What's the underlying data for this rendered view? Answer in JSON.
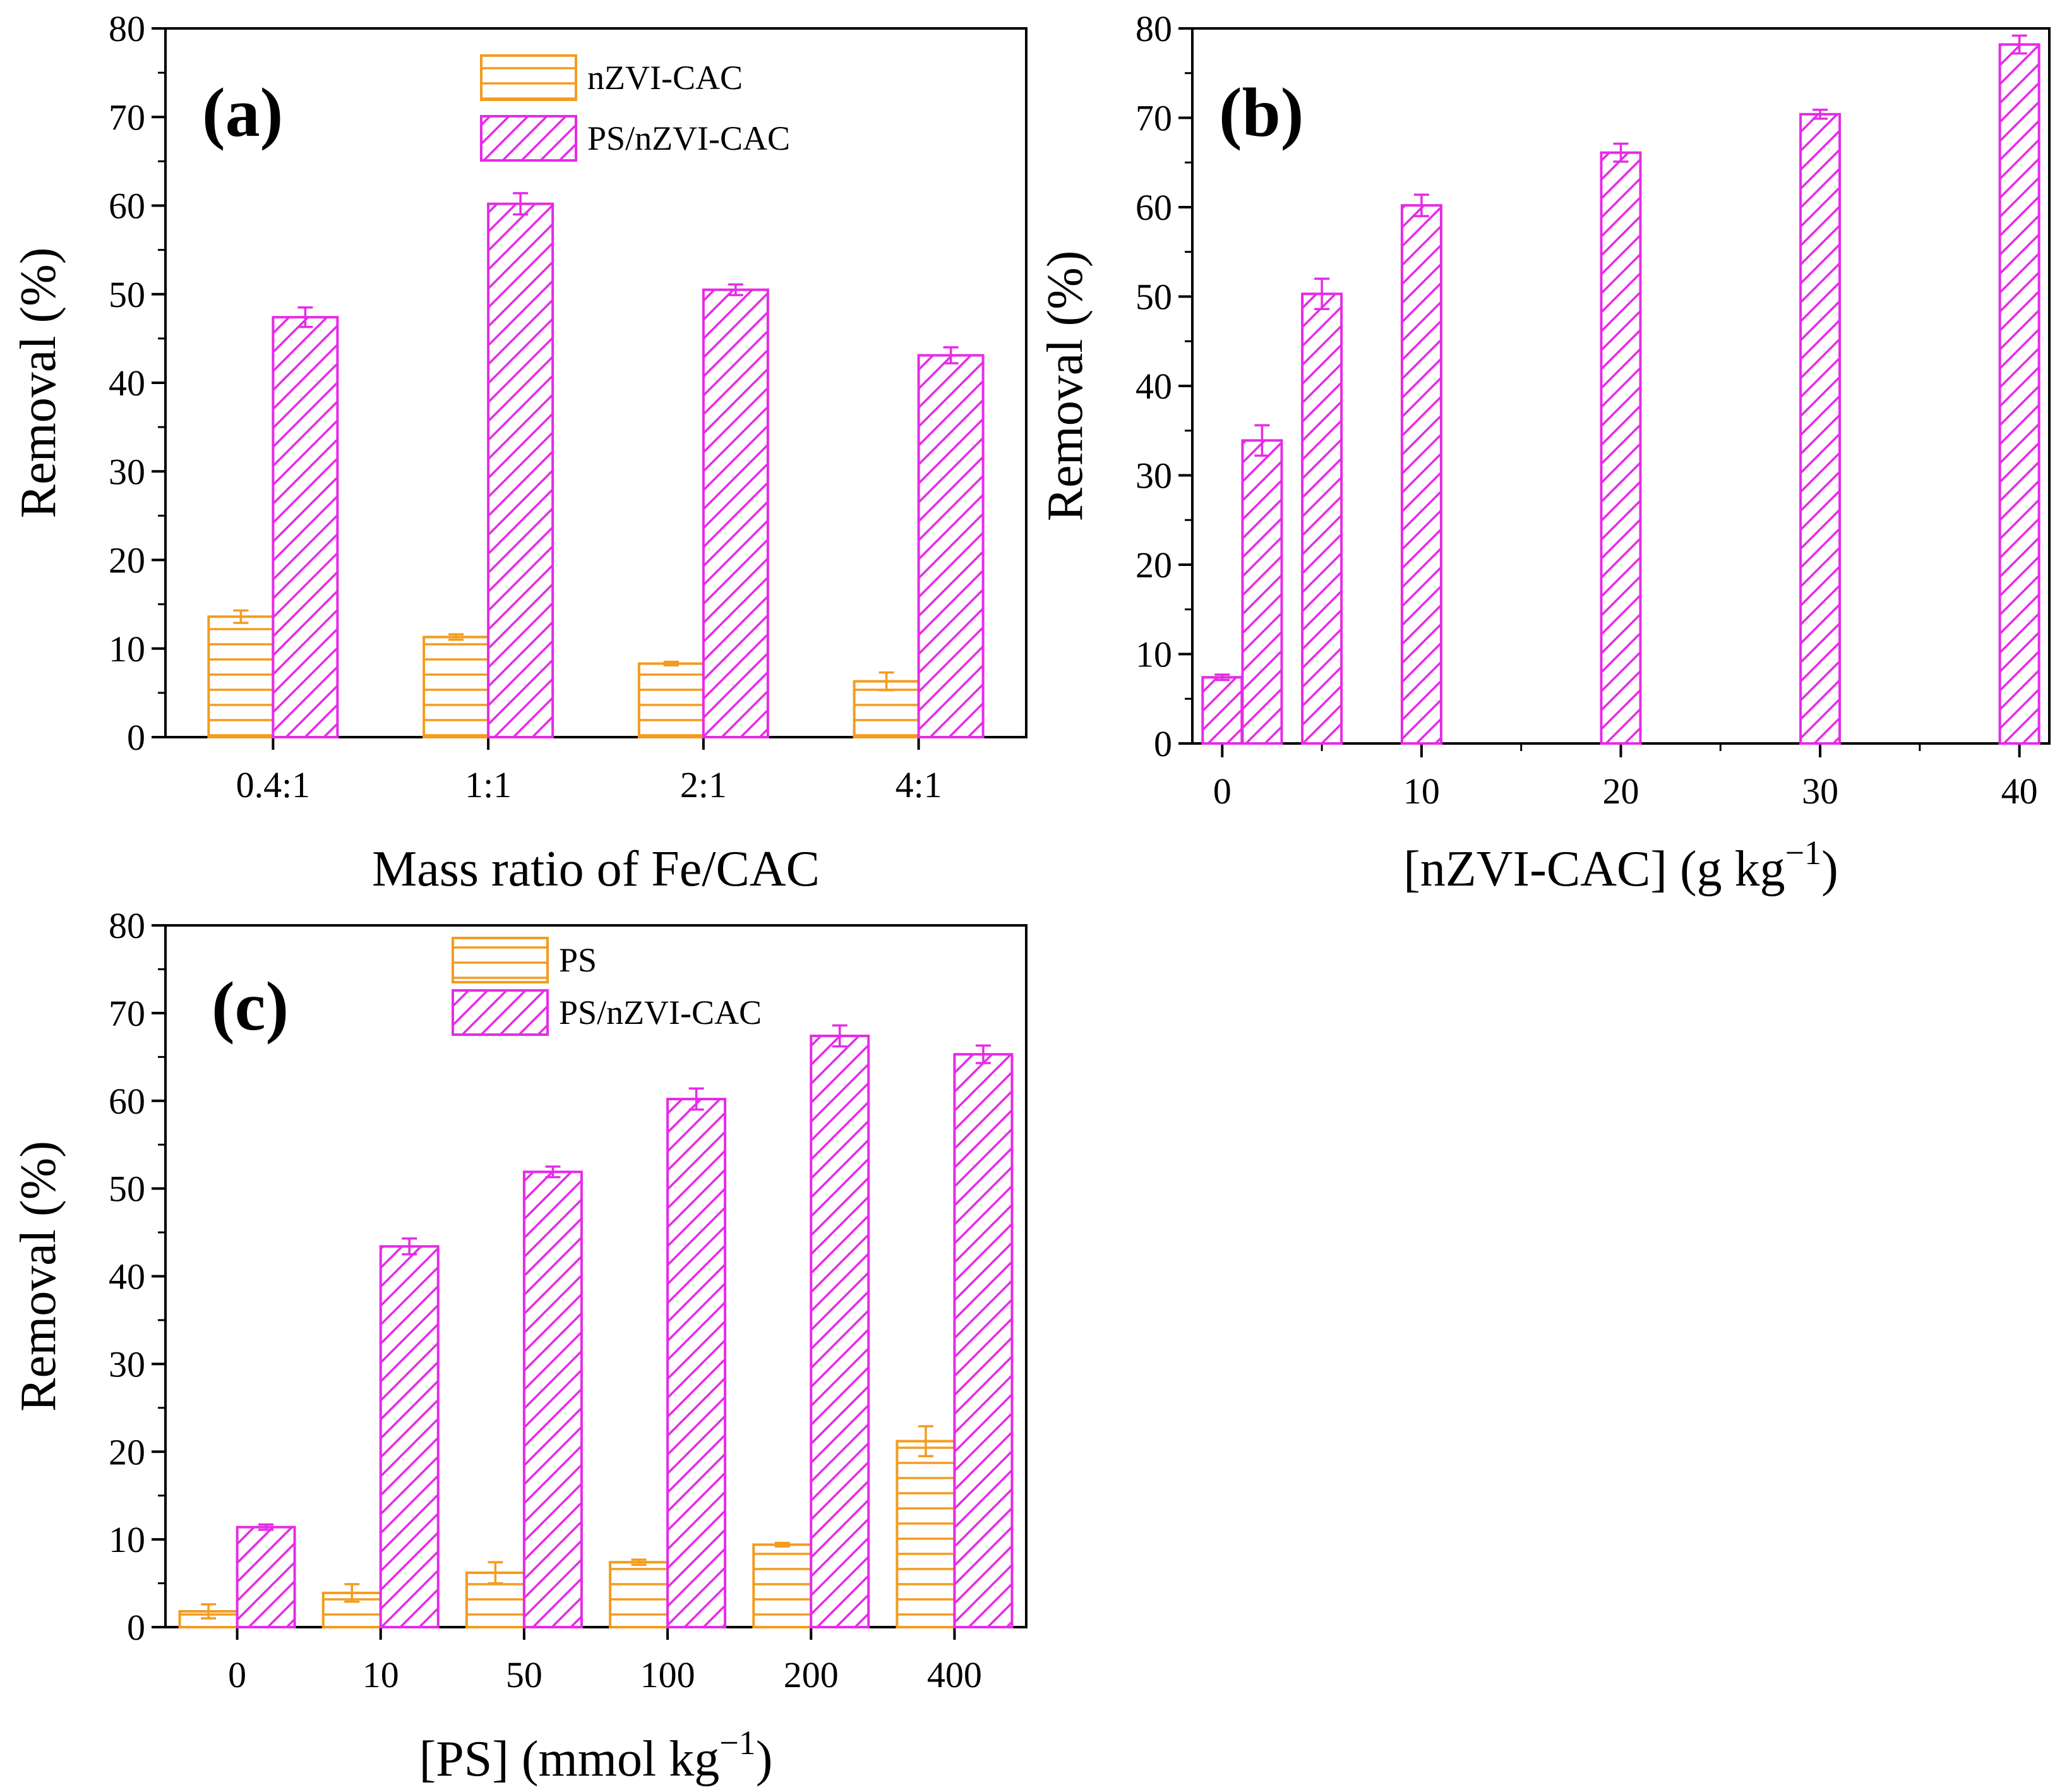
{
  "colors": {
    "orange": "#F39C1F",
    "magenta": "#E62BE6",
    "axis": "#000000"
  },
  "chart_data": [
    {
      "id": "a",
      "type": "bar",
      "panel_label": "(a)",
      "xlabel": "Mass ratio of Fe/CAC",
      "ylabel": "Removal (%)",
      "ylim": [
        0,
        80
      ],
      "yticks": [
        "0",
        "10",
        "20",
        "30",
        "40",
        "50",
        "60",
        "70",
        "80"
      ],
      "categories": [
        "0.4:1",
        "1:1",
        "2:1",
        "4:1"
      ],
      "legend_position": "top-center",
      "series": [
        {
          "name": "nZVI-CAC",
          "pattern": "horizontal",
          "color": "orange",
          "values": [
            13.6,
            11.3,
            8.3,
            6.3
          ],
          "errors": [
            0.7,
            0.3,
            0.2,
            1.0
          ]
        },
        {
          "name": "PS/nZVI-CAC",
          "pattern": "diagonal",
          "color": "magenta",
          "values": [
            47.4,
            60.2,
            50.5,
            43.1
          ],
          "errors": [
            1.1,
            1.2,
            0.6,
            0.9
          ]
        }
      ]
    },
    {
      "id": "b",
      "type": "bar",
      "panel_label": "(b)",
      "xlabel": "[nZVI-CAC] (g kg",
      "xlabel_sup": "−1",
      "xlabel_end": ")",
      "ylabel": "Removal (%)",
      "ylim": [
        0,
        80
      ],
      "xlim": [
        -1.5,
        41.5
      ],
      "yticks": [
        "0",
        "10",
        "20",
        "30",
        "40",
        "50",
        "60",
        "70",
        "80"
      ],
      "xticks": [
        0,
        10,
        20,
        30,
        40
      ],
      "xtick_labels": [
        "0",
        "10",
        "20",
        "30",
        "40"
      ],
      "series": [
        {
          "name": "PS/nZVI-CAC",
          "pattern": "diagonal",
          "color": "magenta",
          "x": [
            0,
            2,
            5,
            10,
            20,
            30,
            40
          ],
          "values": [
            7.4,
            33.9,
            50.3,
            60.2,
            66.1,
            70.4,
            78.2
          ],
          "errors": [
            0.3,
            1.7,
            1.7,
            1.2,
            1.0,
            0.5,
            1.0
          ]
        }
      ]
    },
    {
      "id": "c",
      "type": "bar",
      "panel_label": "(c)",
      "xlabel": "[PS] (mmol kg",
      "xlabel_sup": "−1",
      "xlabel_end": ")",
      "ylabel": "Removal (%)",
      "ylim": [
        0,
        80
      ],
      "yticks": [
        "0",
        "10",
        "20",
        "30",
        "40",
        "50",
        "60",
        "70",
        "80"
      ],
      "categories": [
        "0",
        "10",
        "50",
        "100",
        "200",
        "400"
      ],
      "legend_position": "top-center",
      "series": [
        {
          "name": "PS",
          "pattern": "horizontal",
          "color": "orange",
          "values": [
            1.8,
            3.9,
            6.2,
            7.4,
            9.4,
            21.2
          ],
          "errors": [
            0.8,
            1.0,
            1.2,
            0.3,
            0.2,
            1.7
          ]
        },
        {
          "name": "PS/nZVI-CAC",
          "pattern": "diagonal",
          "color": "magenta",
          "values": [
            11.4,
            43.4,
            51.9,
            60.2,
            67.4,
            65.3
          ],
          "errors": [
            0.3,
            0.9,
            0.6,
            1.2,
            1.2,
            1.0
          ]
        }
      ]
    }
  ]
}
